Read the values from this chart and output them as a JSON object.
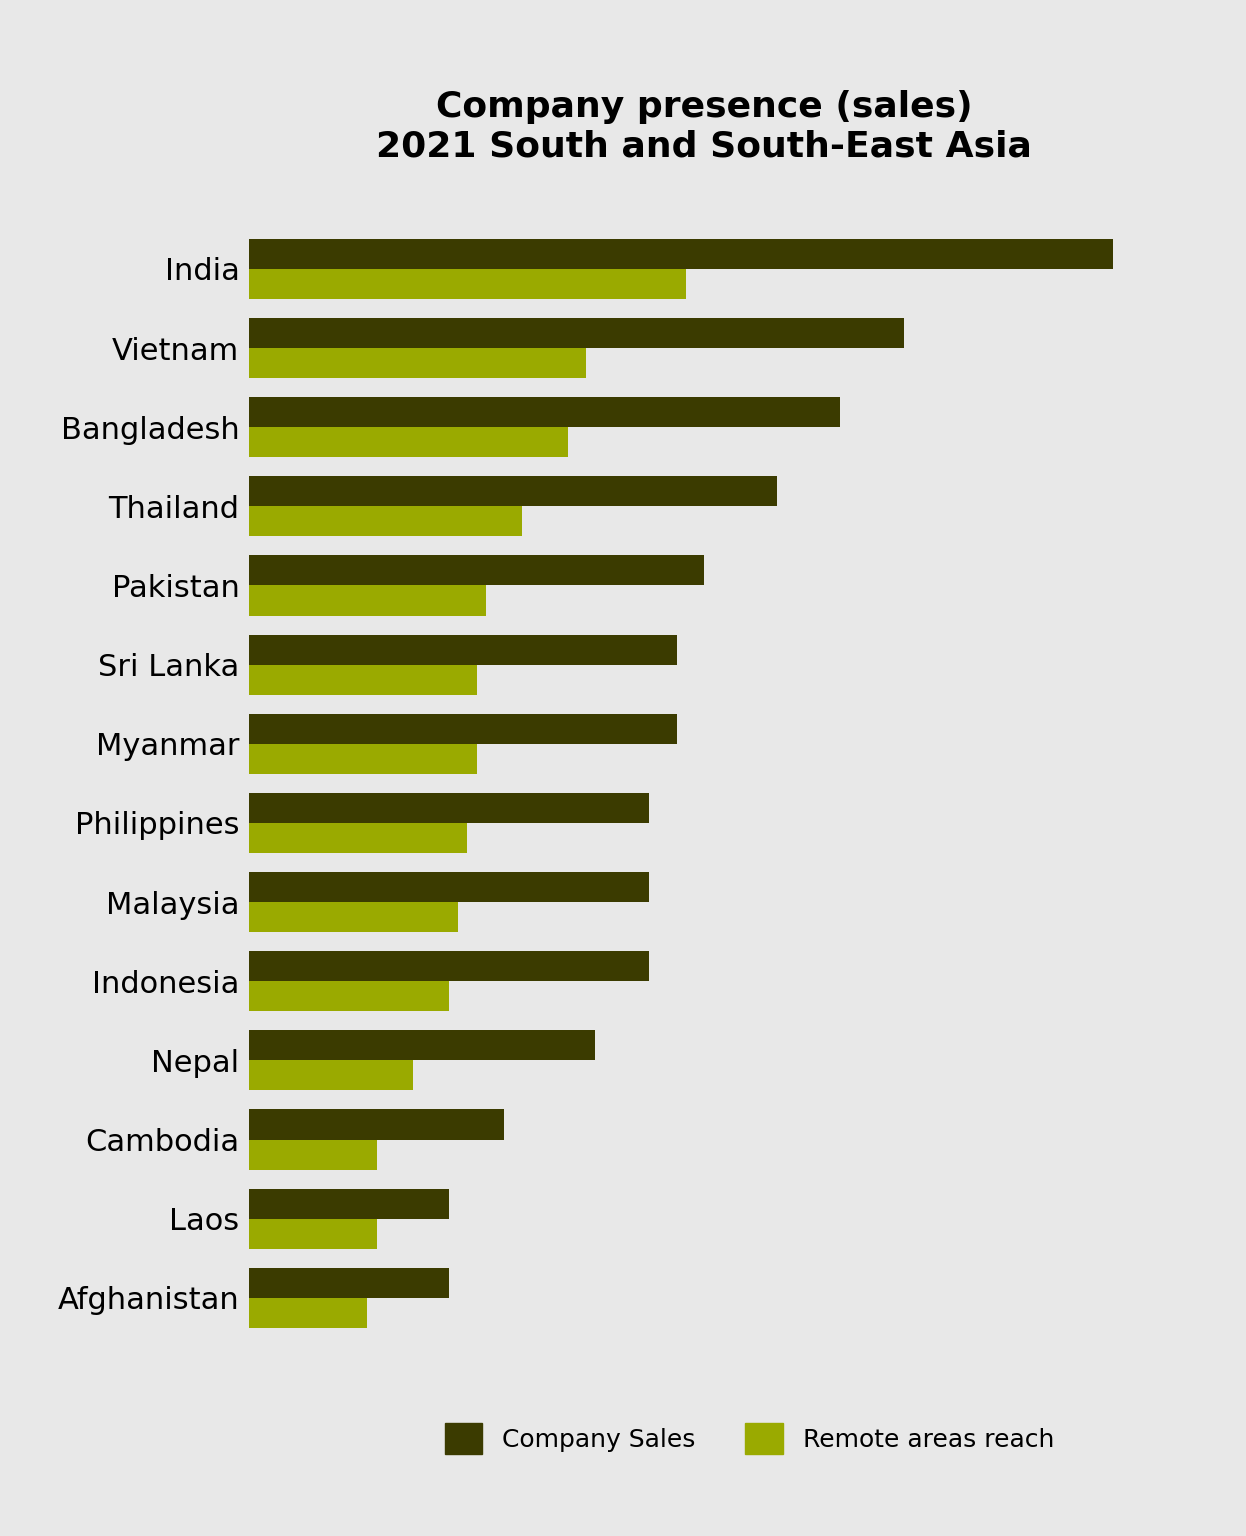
{
  "title_line1": "Company presence (sales)",
  "title_line2": "2021 South and South-East Asia",
  "title_fontsize": 26,
  "background_color": "#e8e8e8",
  "countries": [
    "India",
    "Vietnam",
    "Bangladesh",
    "Thailand",
    "Pakistan",
    "Sri Lanka",
    "Myanmar",
    "Philippines",
    "Malaysia",
    "Indonesia",
    "Nepal",
    "Cambodia",
    "Laos",
    "Afghanistan"
  ],
  "company_sales": [
    95,
    72,
    65,
    58,
    50,
    47,
    47,
    44,
    44,
    44,
    38,
    28,
    22,
    22
  ],
  "remote_reach": [
    48,
    37,
    35,
    30,
    26,
    25,
    25,
    24,
    23,
    22,
    18,
    14,
    14,
    13
  ],
  "color_sales": "#3b3b00",
  "color_remote": "#9aaa00",
  "legend_fontsize": 18,
  "label_fontsize": 22,
  "bar_height": 0.38,
  "xlim": [
    0,
    100
  ]
}
